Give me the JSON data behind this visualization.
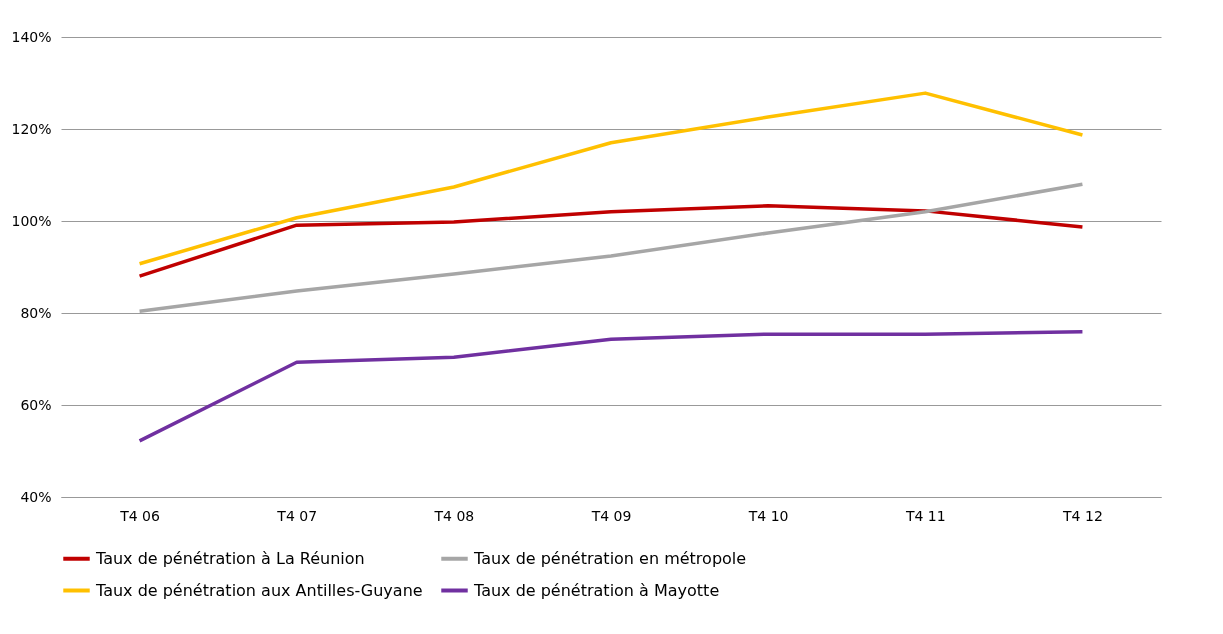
{
  "chart_data": {
    "type": "line",
    "categories": [
      "T4 06",
      "T4 07",
      "T4 08",
      "T4 09",
      "T4 10",
      "T4 11",
      "T4 12"
    ],
    "series": [
      {
        "name": "Taux de pénétration à La Réunion",
        "color": "#c00000",
        "values": [
          88,
          99.1,
          99.8,
          102,
          103.3,
          102.2,
          98.7
        ]
      },
      {
        "name": "Taux de pénétration en métropole",
        "color": "#a6a6a6",
        "values": [
          80.4,
          84.8,
          88.5,
          92.4,
          97.4,
          102,
          108
        ]
      },
      {
        "name": "Taux de pénétration aux Antilles-Guyane",
        "color": "#ffc000",
        "values": [
          90.7,
          100.7,
          107.4,
          117,
          122.6,
          127.8,
          118.7
        ]
      },
      {
        "name": "Taux de pénétration à Mayotte",
        "color": "#7030a0",
        "values": [
          52.2,
          69.3,
          70.4,
          74.3,
          75.4,
          75.4,
          75.9
        ]
      }
    ],
    "ylim": [
      40,
      140
    ],
    "yticks": [
      {
        "value": 40,
        "label": "40%"
      },
      {
        "value": 60,
        "label": "60%"
      },
      {
        "value": 80,
        "label": "80%"
      },
      {
        "value": 100,
        "label": "100%"
      },
      {
        "value": 120,
        "label": "120%"
      },
      {
        "value": 140,
        "label": "140%"
      }
    ],
    "grid": "y",
    "legend": "bottom",
    "marker": "none",
    "line_style": "solid"
  }
}
